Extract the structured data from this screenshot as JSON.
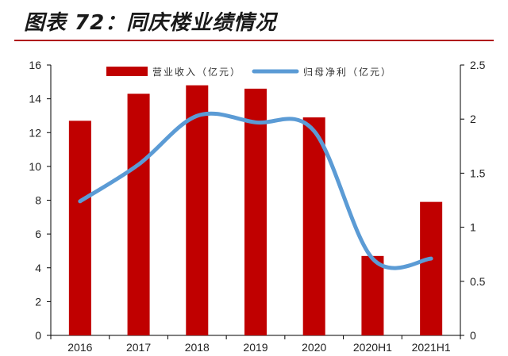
{
  "title": "图表 72：同庆楼业绩情况",
  "chart_data": {
    "type": "bar",
    "categories": [
      "2016",
      "2017",
      "2018",
      "2019",
      "2020",
      "2020H1",
      "2021H1"
    ],
    "series": [
      {
        "name": "营业收入（亿元）",
        "type": "bar",
        "axis": "left",
        "color": "#c00000",
        "values": [
          12.7,
          14.3,
          14.8,
          14.6,
          12.9,
          4.7,
          7.9
        ]
      },
      {
        "name": "归母净利（亿元）",
        "type": "line",
        "axis": "right",
        "color": "#5b9bd5",
        "values": [
          1.24,
          1.58,
          2.03,
          1.97,
          1.89,
          0.71,
          0.71
        ]
      }
    ],
    "ylim_left": [
      0,
      16
    ],
    "yticks_left": [
      "0",
      "2",
      "4",
      "6",
      "8",
      "10",
      "12",
      "14",
      "16"
    ],
    "ylim_right": [
      0,
      2.5
    ],
    "yticks_right": [
      "0",
      "0.5",
      "1",
      "1.5",
      "2",
      "2.5"
    ],
    "legend_position": "top",
    "grid": false
  }
}
